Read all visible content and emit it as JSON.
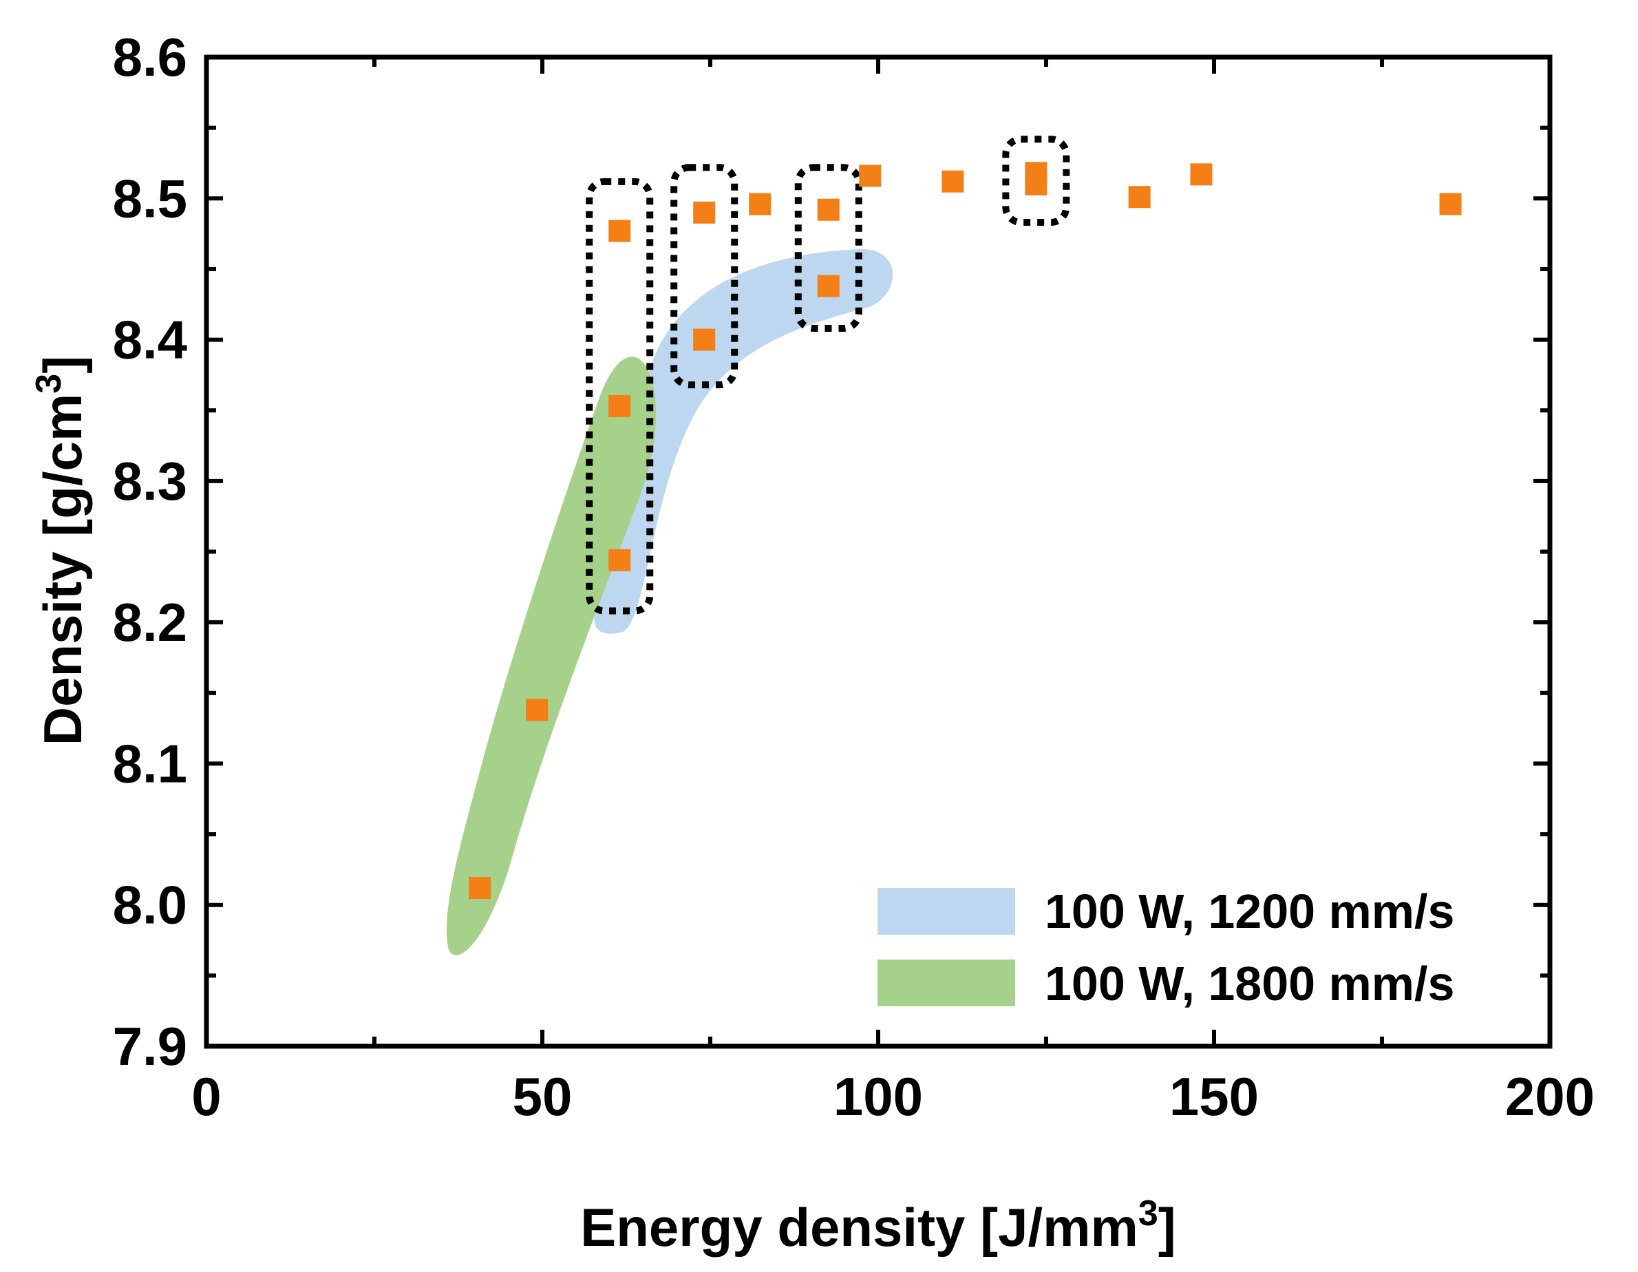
{
  "chart_data": {
    "type": "scatter",
    "xlabel": "Energy density [J/mm",
    "xlabel_sup": "3",
    "xlabel_end": "]",
    "ylabel": "Density [g/cm",
    "ylabel_sup": "3",
    "ylabel_end": "]",
    "xlim": [
      0,
      200
    ],
    "ylim": [
      7.9,
      8.6
    ],
    "xticks": [
      0,
      50,
      100,
      150,
      200
    ],
    "xtick_labels": [
      "0",
      "50",
      "100",
      "150",
      "200"
    ],
    "yticks": [
      7.9,
      8.0,
      8.1,
      8.2,
      8.3,
      8.4,
      8.5,
      8.6
    ],
    "ytick_labels": [
      "7.9",
      "8.0",
      "8.1",
      "8.2",
      "8.3",
      "8.4",
      "8.5",
      "8.6"
    ],
    "grid": false,
    "marker_color": "#f57f17",
    "series": [
      {
        "name": "Density",
        "points": [
          {
            "x": 40.7,
            "y": 8.012
          },
          {
            "x": 49.2,
            "y": 8.138
          },
          {
            "x": 61.5,
            "y": 8.244
          },
          {
            "x": 61.5,
            "y": 8.353
          },
          {
            "x": 61.5,
            "y": 8.477
          },
          {
            "x": 74.1,
            "y": 8.4
          },
          {
            "x": 74.1,
            "y": 8.49
          },
          {
            "x": 82.4,
            "y": 8.496
          },
          {
            "x": 92.6,
            "y": 8.438
          },
          {
            "x": 92.6,
            "y": 8.492
          },
          {
            "x": 98.8,
            "y": 8.516
          },
          {
            "x": 111.1,
            "y": 8.512
          },
          {
            "x": 123.5,
            "y": 8.51
          },
          {
            "x": 123.5,
            "y": 8.518
          },
          {
            "x": 138.9,
            "y": 8.501
          },
          {
            "x": 148.1,
            "y": 8.517
          },
          {
            "x": 185.2,
            "y": 8.496
          }
        ]
      }
    ],
    "regions": [
      {
        "name": "100 W, 1200 mm/s",
        "color": "#bcd7ef"
      },
      {
        "name": "100 W, 1800 mm/s",
        "color": "#a6d18a"
      }
    ],
    "legend": {
      "position": "bottom-right",
      "entries": [
        {
          "label": "100 W, 1200 mm/s",
          "color": "#bcd7ef"
        },
        {
          "label": "100 W, 1800 mm/s",
          "color": "#a6d18a"
        }
      ]
    },
    "highlight_groups": [
      {
        "x": 61.5,
        "y_range": [
          8.23,
          8.49
        ]
      },
      {
        "x": 74.1,
        "y_range": [
          8.39,
          8.5
        ]
      },
      {
        "x": 92.6,
        "y_range": [
          8.43,
          8.5
        ]
      },
      {
        "x": 123.5,
        "y_range": [
          8.505,
          8.52
        ]
      }
    ]
  }
}
